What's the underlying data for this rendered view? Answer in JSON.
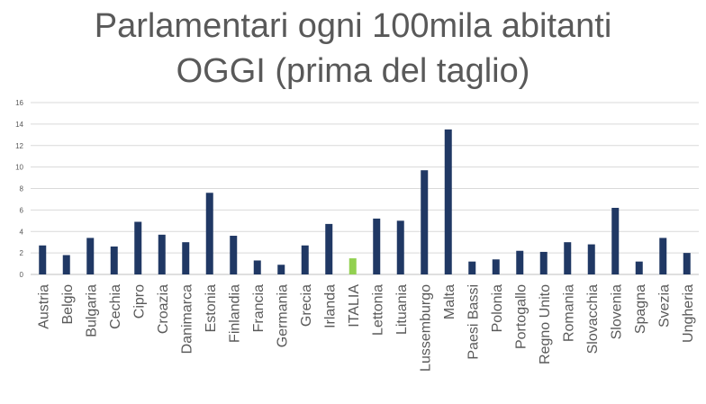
{
  "chart_data": {
    "type": "bar",
    "title": "Parlamentari ogni 100mila abitanti",
    "subtitle": "OGGI (prima del taglio)",
    "xlabel": "",
    "ylabel": "",
    "ylim": [
      0,
      16
    ],
    "yticks": [
      0,
      2,
      4,
      6,
      8,
      10,
      12,
      14,
      16
    ],
    "grid": true,
    "legend": "none",
    "categories": [
      "Austria",
      "Belgio",
      "Bulgaria",
      "Cechia",
      "Cipro",
      "Croazia",
      "Danimarca",
      "Estonia",
      "Finlandia",
      "Francia",
      "Germania",
      "Grecia",
      "Irlanda",
      "ITALIA",
      "Lettonia",
      "Lituania",
      "Lussemburgo",
      "Malta",
      "Paesi Bassi",
      "Polonia",
      "Portogallo",
      "Regno Unito",
      "Romania",
      "Slovacchia",
      "Slovenia",
      "Spagna",
      "Svezia",
      "Ungheria"
    ],
    "values": [
      2.7,
      1.8,
      3.4,
      2.6,
      4.9,
      3.7,
      3.0,
      7.6,
      3.6,
      1.3,
      0.9,
      2.7,
      4.7,
      1.5,
      5.2,
      5.0,
      9.7,
      13.5,
      1.2,
      1.4,
      2.2,
      2.1,
      3.0,
      2.8,
      6.2,
      1.2,
      3.4,
      2.0
    ],
    "highlight_category": "ITALIA",
    "colors": {
      "bar": "#203864",
      "highlight": "#92d050",
      "grid": "#d9d9d9",
      "axis": "#bfbfbf",
      "title": "#595959",
      "tick": "#595959"
    }
  }
}
